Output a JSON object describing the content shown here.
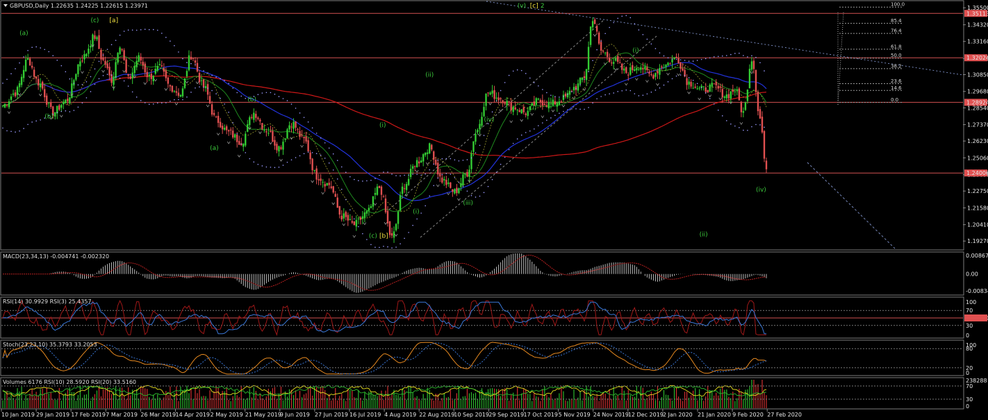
{
  "colors": {
    "bull": "#33cc33",
    "bear": "#e05050",
    "hline": "#d05050",
    "ma200": "#d01818",
    "ma50": "#2233dd",
    "ma_green": "#1f8a1f",
    "dots": "#9a9aff",
    "trend": "#7788bb",
    "channel": "#8c8c8c",
    "hist": "#bdbdbd",
    "macd_signal": "#b82020",
    "rsi14": "#3a78d8",
    "rsi3": "#a01818",
    "stoch_main": "#e88a20",
    "stoch_signal": "#3a78d8",
    "vol_up": "#2db82d",
    "vol_down": "#d03030",
    "vrsi10": "#e8e020",
    "vrsi20": "#2db82d",
    "price_tag_bg": "#e05050",
    "wave_green": "#3cc83c",
    "wave_yellow": "#f0e040",
    "wave_red": "#e05050"
  },
  "header": {
    "menu_icon": "triangle-down-icon",
    "title": "GBPUSD,Daily  1.22635 1.24225 1.22615 1.23971"
  },
  "chart_data": [
    {
      "type": "candlestick",
      "panel": "price",
      "title": "GBPUSD,Daily  1.22635 1.24225 1.22615 1.23971",
      "ylim": [
        1.1875,
        1.3585
      ],
      "y_ticks": [
        "1.35500",
        "1.34320",
        "1.33160",
        "1.31970",
        "1.30850",
        "1.29680",
        "1.28540",
        "1.27370",
        "1.26230",
        "1.25060",
        "1.23890",
        "1.22750",
        "1.21580",
        "1.20410",
        "1.19270"
      ],
      "price_tags": [
        "1.35113",
        "1.32024",
        "1.28924",
        "1.24006"
      ],
      "horizontal_levels": [
        1.35113,
        1.32024,
        1.28924,
        1.24006
      ],
      "ohlc_points": [
        [
          0,
          1.287
        ],
        [
          6,
          1.296
        ],
        [
          12,
          1.319
        ],
        [
          17,
          1.303
        ],
        [
          24,
          1.282
        ],
        [
          30,
          1.29
        ],
        [
          38,
          1.32
        ],
        [
          44,
          1.335
        ],
        [
          48,
          1.318
        ],
        [
          52,
          1.305
        ],
        [
          56,
          1.33
        ],
        [
          60,
          1.305
        ],
        [
          65,
          1.32
        ],
        [
          70,
          1.307
        ],
        [
          75,
          1.313
        ],
        [
          80,
          1.3
        ],
        [
          85,
          1.295
        ],
        [
          90,
          1.322
        ],
        [
          96,
          1.3
        ],
        [
          102,
          1.277
        ],
        [
          108,
          1.268
        ],
        [
          114,
          1.262
        ],
        [
          120,
          1.282
        ],
        [
          126,
          1.27
        ],
        [
          132,
          1.258
        ],
        [
          138,
          1.275
        ],
        [
          144,
          1.263
        ],
        [
          150,
          1.238
        ],
        [
          156,
          1.232
        ],
        [
          162,
          1.21
        ],
        [
          168,
          1.204
        ],
        [
          174,
          1.212
        ],
        [
          180,
          1.23
        ],
        [
          186,
          1.195
        ],
        [
          192,
          1.232
        ],
        [
          198,
          1.248
        ],
        [
          204,
          1.258
        ],
        [
          210,
          1.235
        ],
        [
          216,
          1.227
        ],
        [
          222,
          1.24
        ],
        [
          226,
          1.268
        ],
        [
          232,
          1.296
        ],
        [
          238,
          1.292
        ],
        [
          244,
          1.286
        ],
        [
          250,
          1.282
        ],
        [
          256,
          1.29
        ],
        [
          262,
          1.288
        ],
        [
          268,
          1.292
        ],
        [
          274,
          1.3
        ],
        [
          278,
          1.307
        ],
        [
          282,
          1.348
        ],
        [
          286,
          1.325
        ],
        [
          292,
          1.318
        ],
        [
          298,
          1.31
        ],
        [
          304,
          1.315
        ],
        [
          310,
          1.308
        ],
        [
          316,
          1.315
        ],
        [
          322,
          1.32
        ],
        [
          328,
          1.303
        ],
        [
          334,
          1.298
        ],
        [
          340,
          1.3
        ],
        [
          346,
          1.294
        ],
        [
          350,
          1.298
        ],
        [
          354,
          1.282
        ],
        [
          358,
          1.32
        ],
        [
          362,
          1.278
        ],
        [
          365,
          1.24
        ]
      ],
      "moving_averages": [
        "MA200",
        "MA50",
        "MA20",
        "MA10"
      ],
      "x_ticks": [
        "10 Jan 2019",
        "29 Jan 2019",
        "17 Feb 2019",
        "7 Mar 2019",
        "26 Mar 2019",
        "14 Apr 2019",
        "2 May 2019",
        "21 May 2019",
        "9 Jun 2019",
        "27 Jun 2019",
        "16 Jul 2019",
        "4 Aug 2019",
        "22 Aug 2019",
        "10 Sep 2019",
        "29 Sep 2019",
        "17 Oct 2019",
        "5 Nov 2019",
        "24 Nov 2019",
        "12 Dec 2019",
        "2 Jan 2020",
        "21 Jan 2020",
        "9 Feb 2020",
        "27 Feb 2020"
      ],
      "wave_labels": [
        {
          "text": "(a)",
          "color": "green",
          "i": 8,
          "y": 1.336
        },
        {
          "text": "(b)",
          "color": "green",
          "i": 20,
          "y": 1.278
        },
        {
          "text": "(c)",
          "color": "green",
          "i": 42,
          "y": 1.345
        },
        {
          "text": "[a]",
          "color": "yellow",
          "i": 51,
          "y": 1.345
        },
        {
          "text": "(b)",
          "color": "green",
          "i": 117,
          "y": 1.29
        },
        {
          "text": "(a)",
          "color": "green",
          "i": 99,
          "y": 1.256
        },
        {
          "text": "(i)",
          "color": "green",
          "i": 180,
          "y": 1.272
        },
        {
          "text": "(c)",
          "color": "green",
          "i": 175,
          "y": 1.195
        },
        {
          "text": "[b]",
          "color": "yellow",
          "i": 180,
          "y": 1.195
        },
        {
          "text": "(i)",
          "color": "green",
          "i": 196,
          "y": 1.212
        },
        {
          "text": "(ii)",
          "color": "green",
          "i": 202,
          "y": 1.307
        },
        {
          "text": "(iii)",
          "color": "green",
          "i": 220,
          "y": 1.218
        },
        {
          "text": "(iv)",
          "color": "green",
          "i": 230,
          "y": 1.276
        },
        {
          "text": "(v)",
          "color": "green",
          "i": 246,
          "y": 1.355
        },
        {
          "text": "[c]",
          "color": "yellow",
          "i": 252,
          "y": 1.355
        },
        {
          "text": "2",
          "color": "red",
          "i": 257,
          "y": 1.355
        },
        {
          "text": "(i)",
          "color": "green",
          "i": 252,
          "y": 1.284
        },
        {
          "text": "(i)",
          "color": "green",
          "i": 301,
          "y": 1.324
        },
        {
          "text": "(iv)",
          "color": "green",
          "i": 360,
          "y": 1.227
        },
        {
          "text": "(ii)",
          "color": "green",
          "i": 333,
          "y": 1.196
        }
      ],
      "fibonacci": {
        "levels": [
          {
            "label": "100.0",
            "y": 1.3555
          },
          {
            "label": "85.4",
            "y": 1.3442
          },
          {
            "label": "76.4",
            "y": 1.3372
          },
          {
            "label": "61.8",
            "y": 1.3262
          },
          {
            "label": "50.0",
            "y": 1.32
          },
          {
            "label": "38.2",
            "y": 1.3127
          },
          {
            "label": "23.6",
            "y": 1.3022
          },
          {
            "label": "14.6",
            "y": 1.2975
          },
          {
            "label": "0.0",
            "y": 1.2892
          }
        ]
      }
    },
    {
      "type": "histogram",
      "panel": "macd",
      "title": "MACD(23,34,13) -0.004741 -0.002320",
      "y_ticks": [
        "0.00867",
        "0.00",
        "-0.008341"
      ],
      "ylim": [
        -0.0083,
        0.0087
      ]
    },
    {
      "type": "line",
      "panel": "rsi",
      "title": "RSI(14) 30.9929  RSI(3) 25.4357",
      "y_ticks": [
        "100",
        "70",
        "50.0000",
        "30",
        "0"
      ],
      "ylim": [
        0,
        100
      ],
      "levels": [
        70,
        50,
        30
      ]
    },
    {
      "type": "line",
      "panel": "stoch",
      "title": "Stoch(23,23,10) 35.3793 33.2053",
      "y_ticks": [
        "100",
        "80",
        "20",
        "0"
      ],
      "ylim": [
        0,
        100
      ],
      "levels": [
        80,
        20
      ]
    },
    {
      "type": "bar",
      "panel": "volume",
      "title": "Volumes 6176  RSI(10) 28.5920  RSI(20) 33.5160",
      "y_ticks": [
        "238288",
        "70",
        "30",
        "0"
      ]
    }
  ]
}
